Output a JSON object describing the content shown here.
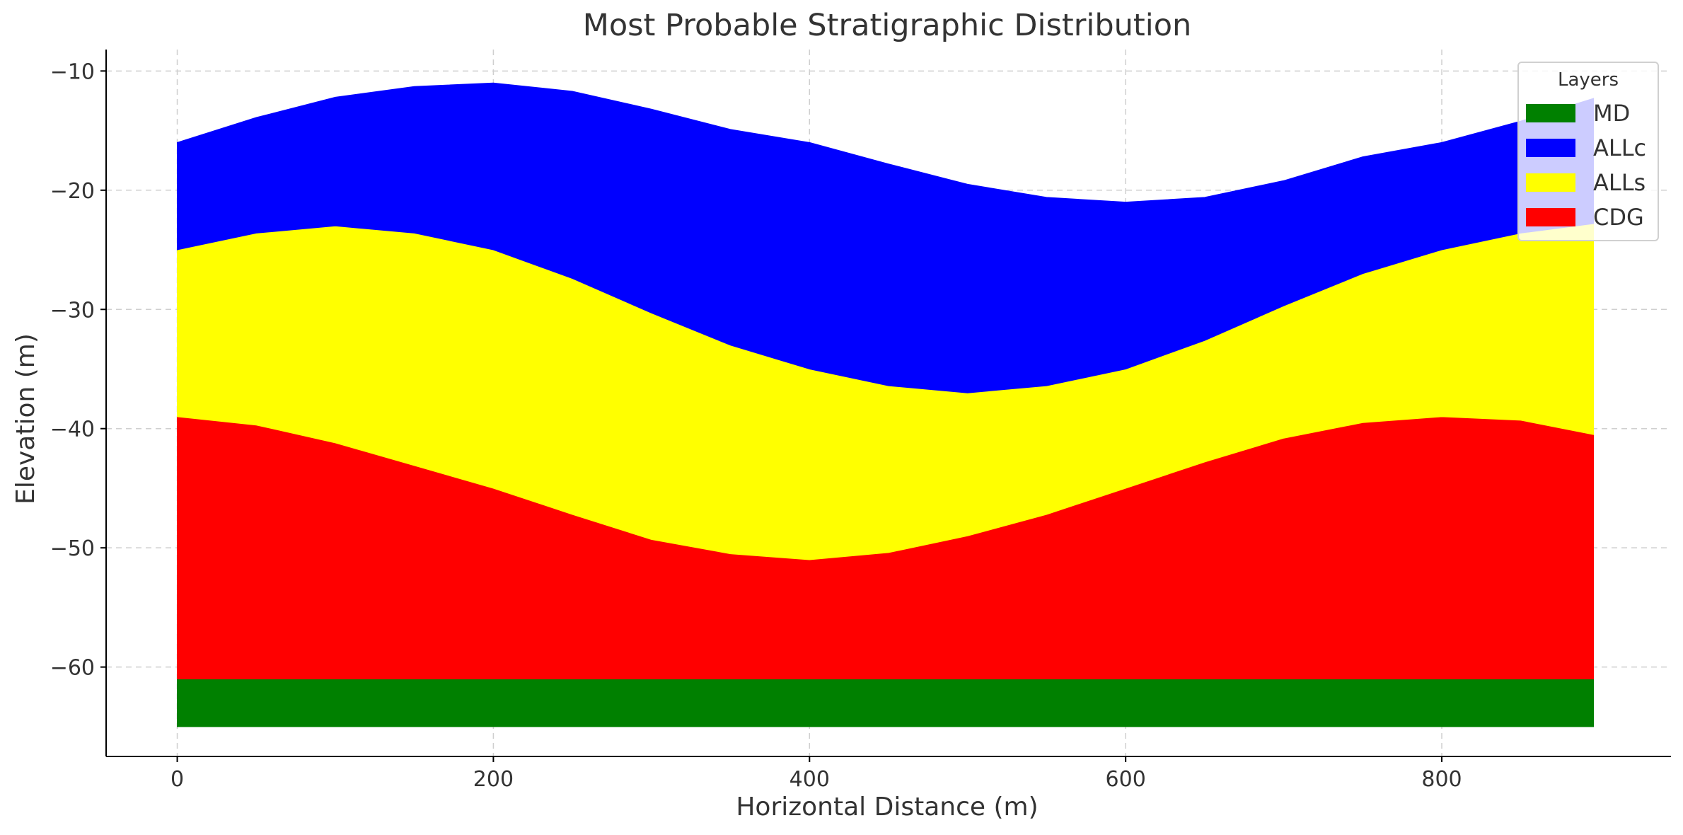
{
  "chart_data": {
    "type": "area",
    "title": "Most Probable Stratigraphic Distribution",
    "xlabel": "Horizontal Distance (m)",
    "ylabel": "Elevation (m)",
    "xlim": [
      -45,
      945
    ],
    "ylim": [
      -67.5,
      -8.2
    ],
    "x_ticks": [
      0,
      200,
      400,
      600,
      800
    ],
    "x_tick_labels": [
      "0",
      "200",
      "400",
      "600",
      "800"
    ],
    "y_ticks": [
      -10,
      -20,
      -30,
      -40,
      -50,
      -60
    ],
    "y_tick_labels": [
      "−10",
      "−20",
      "−30",
      "−40",
      "−50",
      "−60"
    ],
    "grid": true,
    "legend": {
      "title": "Layers",
      "placement": "top-right",
      "entries": [
        {
          "name": "MD",
          "color": "#008000"
        },
        {
          "name": "ALLc",
          "color": "#0000ff"
        },
        {
          "name": "ALLs",
          "color": "#ffff00"
        },
        {
          "name": "CDG",
          "color": "#ff0000"
        }
      ]
    },
    "x": [
      0,
      50,
      100,
      150,
      200,
      250,
      300,
      350,
      400,
      450,
      500,
      550,
      600,
      650,
      700,
      750,
      800,
      850,
      896
    ],
    "series": [
      {
        "name": "MD",
        "color": "#008000",
        "bottom": [
          -65,
          -65,
          -65,
          -65,
          -65,
          -65,
          -65,
          -65,
          -65,
          -65,
          -65,
          -65,
          -65,
          -65,
          -65,
          -65,
          -65,
          -65,
          -65
        ],
        "top": [
          -61,
          -61,
          -61,
          -61,
          -61,
          -61,
          -61,
          -61,
          -61,
          -61,
          -61,
          -61,
          -61,
          -61,
          -61,
          -61,
          -61,
          -61,
          -61
        ]
      },
      {
        "name": "CDG",
        "color": "#ff0000",
        "bottom": [
          -61,
          -61,
          -61,
          -61,
          -61,
          -61,
          -61,
          -61,
          -61,
          -61,
          -61,
          -61,
          -61,
          -61,
          -61,
          -61,
          -61,
          -61,
          -61
        ],
        "top": [
          -39,
          -39.7,
          -41.2,
          -43.1,
          -45,
          -47.2,
          -49.3,
          -50.5,
          -51,
          -50.4,
          -49,
          -47.2,
          -45,
          -42.8,
          -40.8,
          -39.5,
          -39,
          -39.3,
          -40.5
        ]
      },
      {
        "name": "ALLs",
        "color": "#ffff00",
        "bottom": [
          -39,
          -39.7,
          -41.2,
          -43.1,
          -45,
          -47.2,
          -49.3,
          -50.5,
          -51,
          -50.4,
          -49,
          -47.2,
          -45,
          -42.8,
          -40.8,
          -39.5,
          -39,
          -39.3,
          -40.5
        ],
        "top": [
          -25,
          -23.6,
          -23,
          -23.6,
          -25,
          -27.4,
          -30.3,
          -33,
          -35,
          -36.4,
          -37,
          -36.4,
          -35,
          -32.6,
          -29.7,
          -27,
          -25,
          -23.6,
          -22.8
        ]
      },
      {
        "name": "ALLc",
        "color": "#0000ff",
        "bottom": [
          -25,
          -23.6,
          -23,
          -23.6,
          -25,
          -27.4,
          -30.3,
          -33,
          -35,
          -36.4,
          -37,
          -36.4,
          -35,
          -32.6,
          -29.7,
          -27,
          -25,
          -23.6,
          -22.8
        ],
        "top": [
          -16,
          -13.9,
          -12.2,
          -11.3,
          -11,
          -11.7,
          -13.2,
          -14.9,
          -16,
          -17.8,
          -19.5,
          -20.6,
          -21,
          -20.6,
          -19.2,
          -17.2,
          -16,
          -14.2,
          -12.3
        ]
      }
    ]
  }
}
